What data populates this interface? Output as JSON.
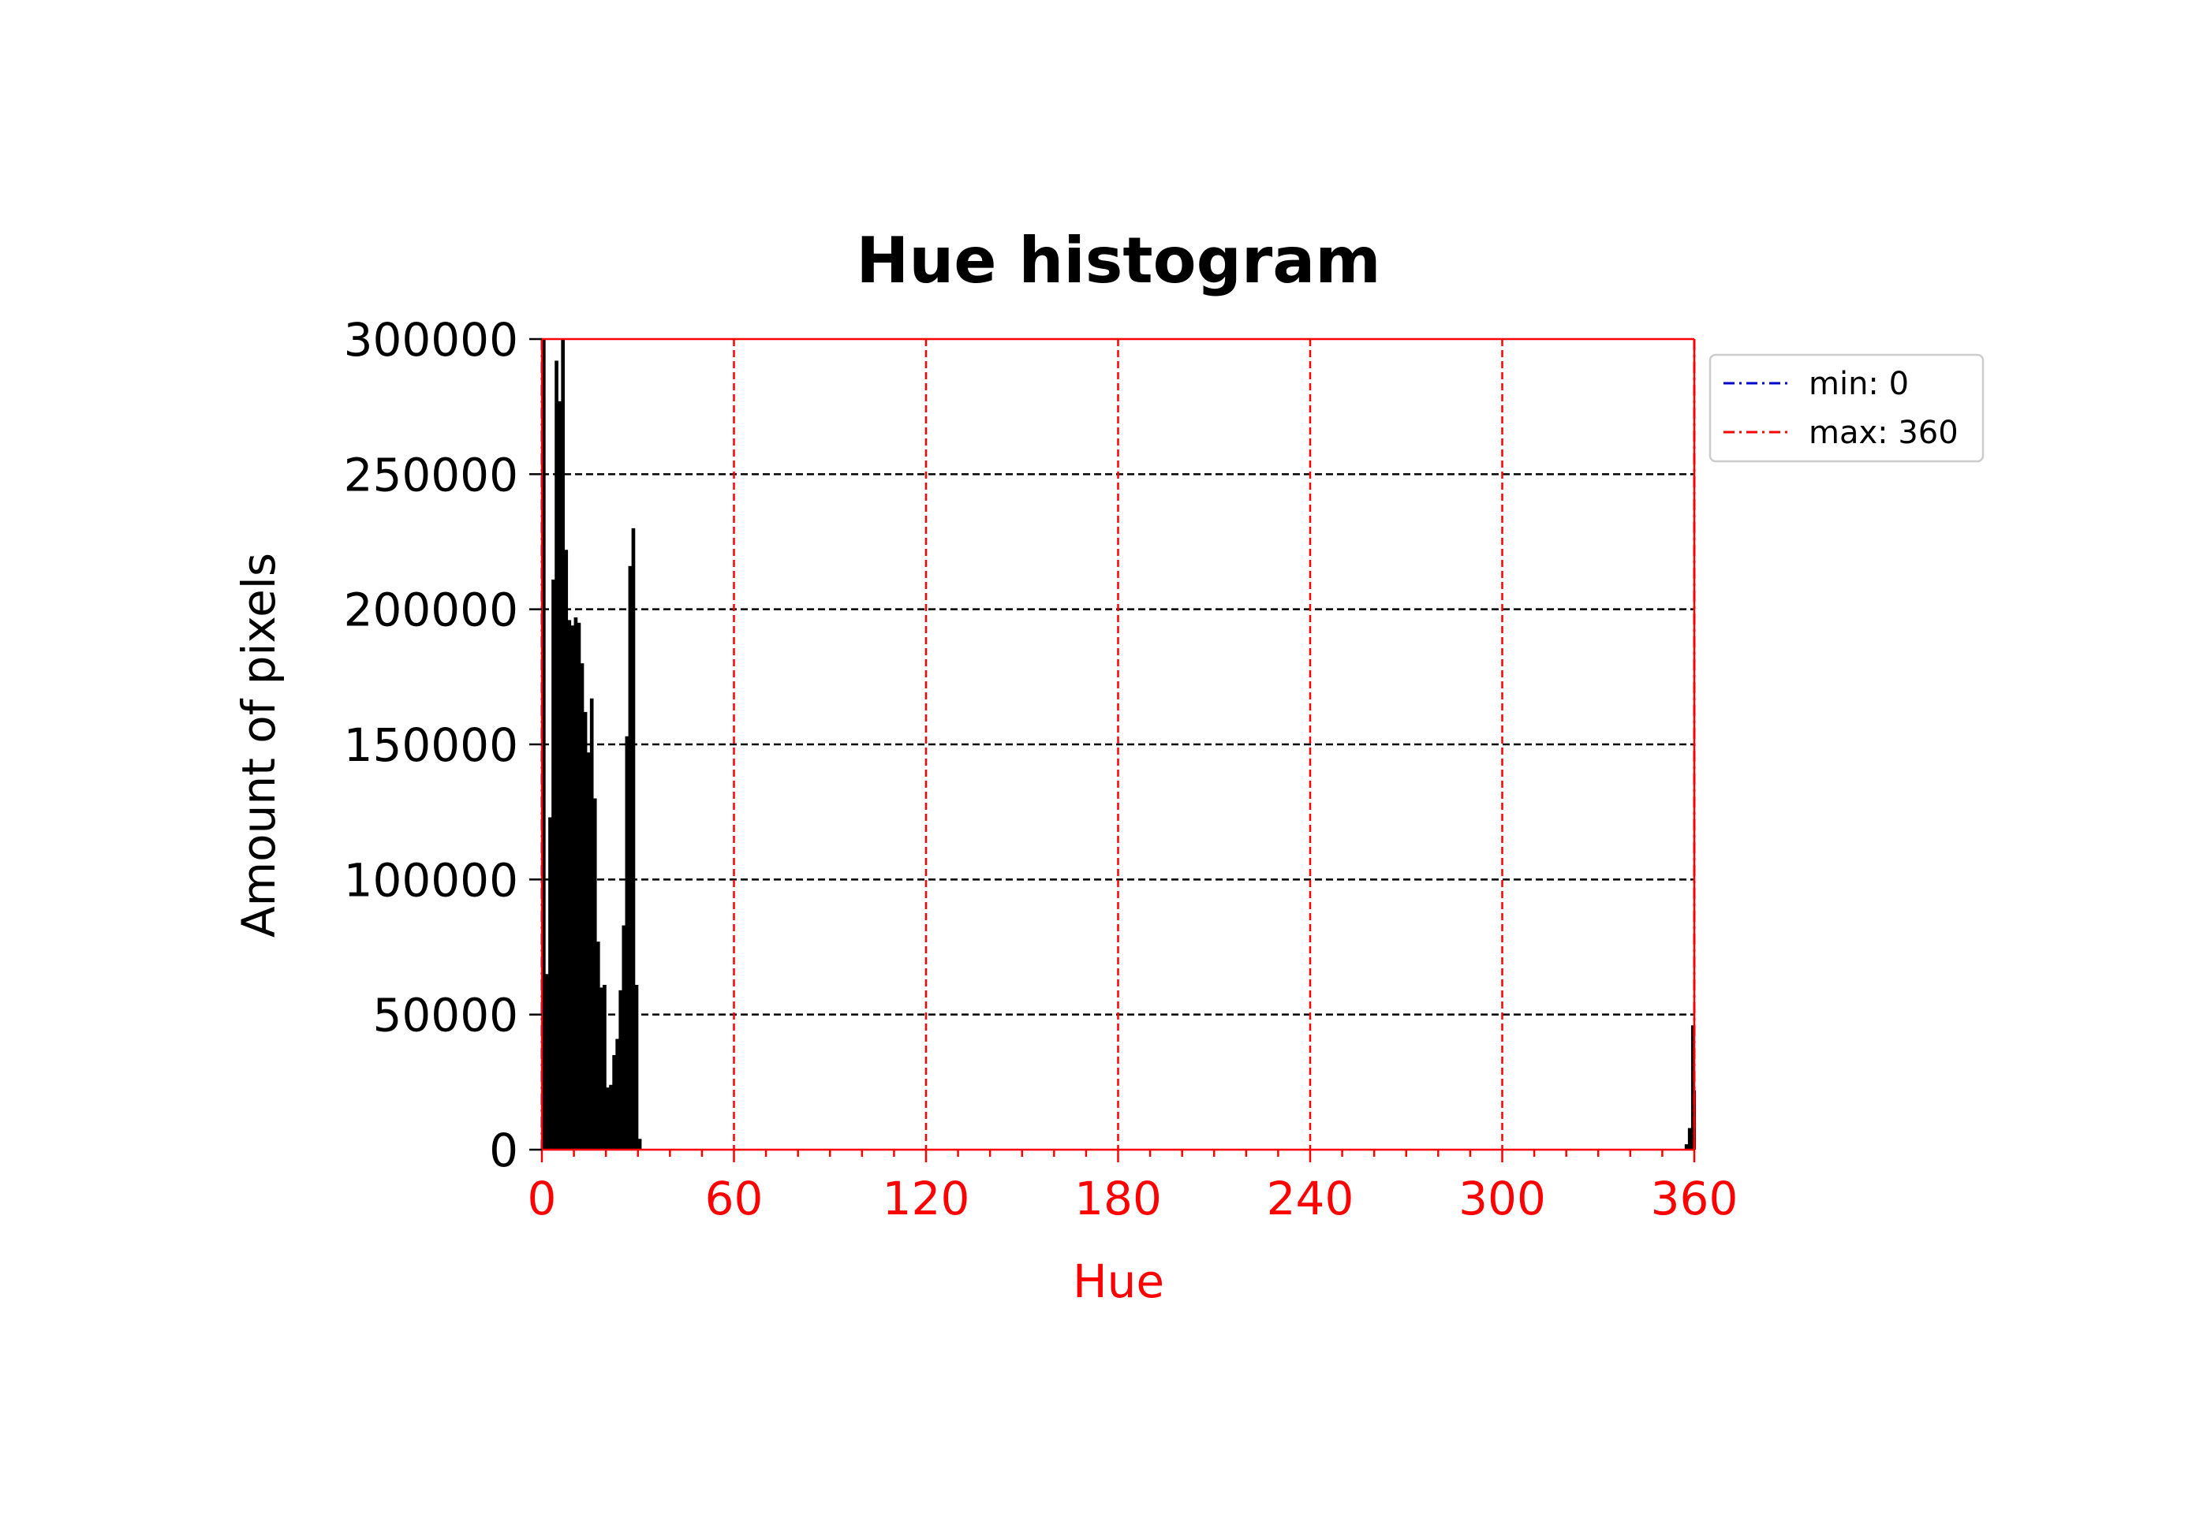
{
  "chart_data": {
    "type": "bar",
    "title": "Hue histogram",
    "xlabel": "Hue",
    "ylabel": "Amount of pixels",
    "xlim": [
      0,
      360
    ],
    "ylim": [
      0,
      300000
    ],
    "x_ticks": [
      0,
      60,
      120,
      180,
      240,
      300,
      360
    ],
    "y_ticks": [
      0,
      50000,
      100000,
      150000,
      200000,
      250000,
      300000
    ],
    "grid": true,
    "legend_position": "outside-top-right",
    "colors": {
      "bars": "#000000",
      "x_axis": "#ff0000",
      "x_grid": "#ff0000",
      "y_grid": "#000000",
      "min_line": "#0000cc",
      "max_line": "#ff0000"
    },
    "legend": [
      {
        "label": "min: 0",
        "color": "#0000cc",
        "style": "dash-dot"
      },
      {
        "label": "max: 360",
        "color": "#ff0000",
        "style": "dash-dot"
      }
    ],
    "bin_width": 1,
    "bins": [
      {
        "x": 0,
        "y": 300000
      },
      {
        "x": 1,
        "y": 65000
      },
      {
        "x": 2,
        "y": 123000
      },
      {
        "x": 3,
        "y": 211000
      },
      {
        "x": 4,
        "y": 292000
      },
      {
        "x": 5,
        "y": 277000
      },
      {
        "x": 6,
        "y": 300000
      },
      {
        "x": 7,
        "y": 222000
      },
      {
        "x": 8,
        "y": 196000
      },
      {
        "x": 9,
        "y": 194000
      },
      {
        "x": 10,
        "y": 197000
      },
      {
        "x": 11,
        "y": 195000
      },
      {
        "x": 12,
        "y": 180000
      },
      {
        "x": 13,
        "y": 162000
      },
      {
        "x": 14,
        "y": 147000
      },
      {
        "x": 15,
        "y": 167000
      },
      {
        "x": 16,
        "y": 130000
      },
      {
        "x": 17,
        "y": 77000
      },
      {
        "x": 18,
        "y": 60000
      },
      {
        "x": 19,
        "y": 61000
      },
      {
        "x": 20,
        "y": 23000
      },
      {
        "x": 21,
        "y": 24000
      },
      {
        "x": 22,
        "y": 35000
      },
      {
        "x": 23,
        "y": 41000
      },
      {
        "x": 24,
        "y": 59000
      },
      {
        "x": 25,
        "y": 83000
      },
      {
        "x": 26,
        "y": 153000
      },
      {
        "x": 27,
        "y": 216000
      },
      {
        "x": 28,
        "y": 230000
      },
      {
        "x": 29,
        "y": 61000
      },
      {
        "x": 30,
        "y": 4000
      },
      {
        "x": 357,
        "y": 2000
      },
      {
        "x": 358,
        "y": 8000
      },
      {
        "x": 359,
        "y": 46000
      },
      {
        "x": 360,
        "y": 22000
      }
    ],
    "vlines": [
      {
        "label": "min: 0",
        "x": 0,
        "color": "#0000cc"
      },
      {
        "label": "max: 360",
        "x": 360,
        "color": "#ff0000"
      }
    ]
  }
}
